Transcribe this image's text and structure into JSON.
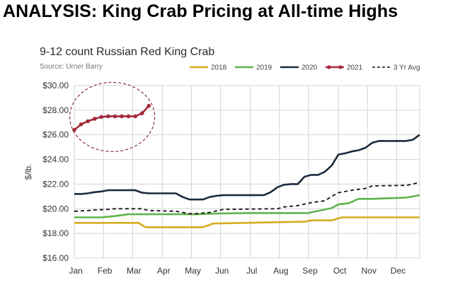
{
  "headline": "ANALYSIS: King Crab Pricing at All-time Highs",
  "chart_data": {
    "type": "line",
    "title": "9-12 count Russian Red King Crab",
    "source": "Source: Urner Barry",
    "ylabel": "$/lb.",
    "xlabel": "",
    "ylim": [
      16,
      30
    ],
    "yticks": [
      16,
      18,
      20,
      22,
      24,
      26,
      28,
      30
    ],
    "ytick_labels": [
      "$16.00",
      "$18.00",
      "$20.00",
      "$22.00",
      "$24.00",
      "$26.00",
      "$28.00",
      "$30.00"
    ],
    "xlim": [
      0,
      51
    ],
    "xticks": [
      0,
      4.3,
      8.6,
      13,
      17.3,
      21.6,
      26,
      30.3,
      34.6,
      39,
      43.3,
      47.6
    ],
    "xtick_labels": [
      "Jan",
      "Feb",
      "Mar",
      "Apr",
      "May",
      "Jun",
      "Jul",
      "Aug",
      "Sep",
      "Oct",
      "Nov",
      "Dec"
    ],
    "grid": {
      "x": true,
      "y": true
    },
    "legend_position": "top-right",
    "annotation": "dashed circle around the 2021 series",
    "series": [
      {
        "name": "2018",
        "color": "#d4ac1e",
        "dash": false,
        "markers": false,
        "x": [
          0,
          9.5,
          10.5,
          19,
          20.5,
          34,
          35,
          38,
          39.5,
          51
        ],
        "y": [
          18.85,
          18.85,
          18.5,
          18.5,
          18.8,
          18.95,
          19.05,
          19.05,
          19.3,
          19.3
        ]
      },
      {
        "name": "2019",
        "color": "#5cb54a",
        "dash": false,
        "markers": false,
        "x": [
          0,
          4,
          6,
          8,
          18,
          20,
          25,
          34.5,
          38,
          39,
          40.5,
          41,
          41.5,
          42,
          43,
          44,
          49,
          50,
          51
        ],
        "y": [
          19.3,
          19.3,
          19.4,
          19.55,
          19.55,
          19.6,
          19.65,
          19.65,
          20.05,
          20.35,
          20.45,
          20.55,
          20.7,
          20.8,
          20.8,
          20.8,
          20.9,
          21,
          21.1
        ],
        "_x_note": "adjusted"
      },
      {
        "name": "2020",
        "color": "#1b2a3e",
        "dash": false,
        "markers": false,
        "x": [
          0,
          1,
          2,
          3,
          4,
          5,
          6,
          7,
          8,
          9,
          10,
          11,
          12,
          13,
          14,
          15,
          16,
          17,
          18,
          19,
          20,
          21,
          22,
          23,
          24,
          25,
          26,
          27,
          28,
          29,
          30,
          31,
          32,
          33,
          34,
          35,
          36,
          37,
          38,
          39,
          40,
          41,
          42,
          43,
          44,
          45,
          46,
          47,
          48,
          49,
          50,
          51
        ],
        "y": [
          21.2,
          21.2,
          21.25,
          21.35,
          21.4,
          21.5,
          21.5,
          21.5,
          21.5,
          21.5,
          21.3,
          21.25,
          21.25,
          21.25,
          21.25,
          21.25,
          20.95,
          20.75,
          20.75,
          20.75,
          20.95,
          21.05,
          21.1,
          21.1,
          21.1,
          21.1,
          21.1,
          21.1,
          21.1,
          21.35,
          21.75,
          21.95,
          22,
          22,
          22.6,
          22.75,
          22.75,
          23.0,
          23.5,
          24.4,
          24.5,
          24.65,
          24.75,
          24.95,
          25.35,
          25.5,
          25.5,
          25.5,
          25.5,
          25.5,
          25.6,
          26.0
        ]
      },
      {
        "name": "2021",
        "color": "#a3283a",
        "dash": false,
        "markers": true,
        "x": [
          0,
          1,
          2,
          3,
          4,
          5,
          6,
          7,
          8,
          9,
          10,
          11
        ],
        "y": [
          26.4,
          26.85,
          27.1,
          27.3,
          27.45,
          27.5,
          27.5,
          27.5,
          27.5,
          27.5,
          27.75,
          28.35
        ]
      },
      {
        "name": "3 Yr Avg",
        "color": "#111111",
        "dash": true,
        "markers": false,
        "x": [
          0,
          2,
          3,
          5,
          6,
          10,
          11,
          15,
          17,
          18,
          20,
          22,
          30,
          31,
          33,
          35,
          37,
          38,
          39,
          41,
          43,
          44,
          49,
          50,
          51
        ],
        "y": [
          19.8,
          19.85,
          19.9,
          19.95,
          20,
          20,
          19.85,
          19.8,
          19.6,
          19.6,
          19.7,
          19.95,
          20,
          20.15,
          20.25,
          20.5,
          20.65,
          21.0,
          21.3,
          21.5,
          21.65,
          21.85,
          21.9,
          22,
          22.15
        ]
      }
    ]
  }
}
